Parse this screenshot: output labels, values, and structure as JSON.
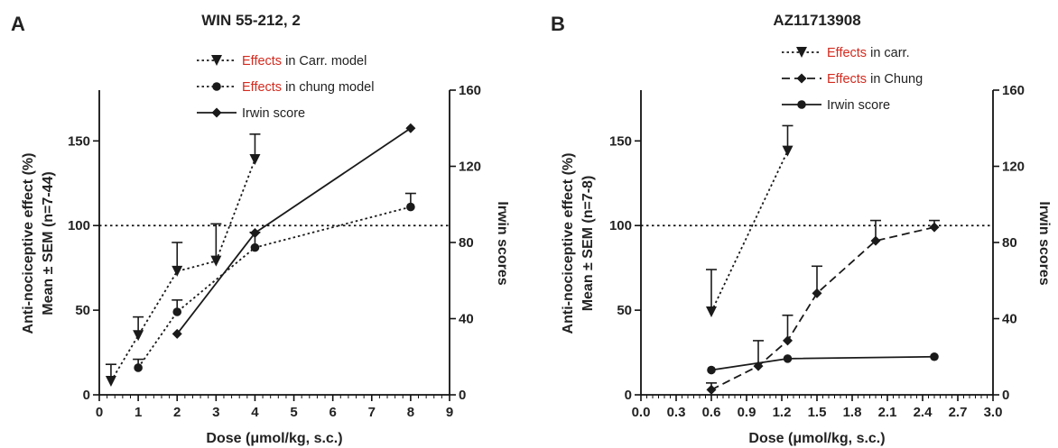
{
  "chart_data": [
    {
      "type": "line",
      "panel_letter": "A",
      "title": "WIN 55-212, 2",
      "xlabel": "Dose (μmol/kg, s.c.)",
      "ylabel_line1": "Anti-nociceptive effect (%)",
      "ylabel_line2": "Mean ± SEM (n=7-44)",
      "y2label": "Irwin scores",
      "xlim": [
        0,
        9
      ],
      "ylim": [
        0,
        180
      ],
      "y2lim": [
        0,
        160
      ],
      "xticks": [
        0,
        1,
        2,
        3,
        4,
        5,
        6,
        7,
        8,
        9
      ],
      "xtick_labels": [
        "0",
        "1",
        "2",
        "3",
        "4",
        "5",
        "6",
        "7",
        "8",
        "9"
      ],
      "yticks": [
        0,
        50,
        100,
        150
      ],
      "y2ticks": [
        0,
        40,
        80,
        120,
        160
      ],
      "reference_line_y": 100,
      "legend_position": "top",
      "legend": [
        {
          "prefix": "Effects",
          "rest": " in Carr. model"
        },
        {
          "prefix": "Effects",
          "rest": " in chung model"
        },
        {
          "prefix": "",
          "rest": "Irwin score"
        }
      ],
      "colors": {
        "legend_prefix": "#d42a1e",
        "lines": "#1a1a1a"
      },
      "series": [
        {
          "marker": "triangle-down",
          "style": "dotted",
          "axis": "left",
          "x": [
            0.3,
            1,
            2,
            3,
            4
          ],
          "y": [
            8,
            35,
            73,
            79,
            139
          ],
          "err": [
            10,
            11,
            17,
            22,
            15
          ]
        },
        {
          "marker": "circle",
          "style": "dotted",
          "axis": "left",
          "x": [
            1,
            2,
            4,
            8
          ],
          "y": [
            16,
            49,
            87,
            111
          ],
          "err": [
            5,
            7,
            9,
            8
          ]
        },
        {
          "marker": "diamond",
          "style": "solid",
          "axis": "right",
          "x": [
            2,
            4,
            8
          ],
          "y": [
            32,
            85,
            140
          ],
          "err": [
            0,
            0,
            0
          ]
        }
      ]
    },
    {
      "type": "line",
      "panel_letter": "B",
      "title": "AZ11713908",
      "xlabel": "Dose (μmol/kg, s.c.)",
      "ylabel_line1": "Anti-nociceptive effect (%)",
      "ylabel_line2": "Mean ± SEM (n=7-8)",
      "y2label": "Irwin scores",
      "xlim": [
        0,
        3.0
      ],
      "ylim": [
        0,
        180
      ],
      "y2lim": [
        0,
        160
      ],
      "xticks": [
        0,
        0.3,
        0.6,
        0.9,
        1.2,
        1.5,
        1.8,
        2.1,
        2.4,
        2.7,
        3.0
      ],
      "xtick_labels": [
        "0.0",
        "0.3",
        "0.6",
        "0.9",
        "1.2",
        "1.5",
        "1.8",
        "2.1",
        "2.4",
        "2.7",
        "3.0"
      ],
      "yticks": [
        0,
        50,
        100,
        150
      ],
      "y2ticks": [
        0,
        40,
        80,
        120,
        160
      ],
      "reference_line_y": 100,
      "legend_position": "top",
      "legend": [
        {
          "prefix": "Effects",
          "rest": " in carr."
        },
        {
          "prefix": "Effects",
          "rest": " in Chung"
        },
        {
          "prefix": "",
          "rest": "Irwin score"
        }
      ],
      "colors": {
        "legend_prefix": "#d42a1e",
        "lines": "#1a1a1a"
      },
      "series": [
        {
          "marker": "triangle-down",
          "style": "dotted",
          "axis": "left",
          "x": [
            0.6,
            1.25
          ],
          "y": [
            49,
            144
          ],
          "err": [
            25,
            15
          ]
        },
        {
          "marker": "diamond",
          "style": "dashed",
          "axis": "left",
          "x": [
            0.6,
            1.0,
            1.25,
            1.5,
            2.0,
            2.5
          ],
          "y": [
            3,
            17,
            32,
            60,
            91,
            99
          ],
          "err": [
            4,
            15,
            15,
            16,
            12,
            4
          ]
        },
        {
          "marker": "circle",
          "style": "solid",
          "axis": "right",
          "x": [
            0.6,
            1.25,
            2.5
          ],
          "y": [
            13,
            19,
            20
          ],
          "err": [
            0,
            0,
            0
          ]
        }
      ]
    }
  ]
}
